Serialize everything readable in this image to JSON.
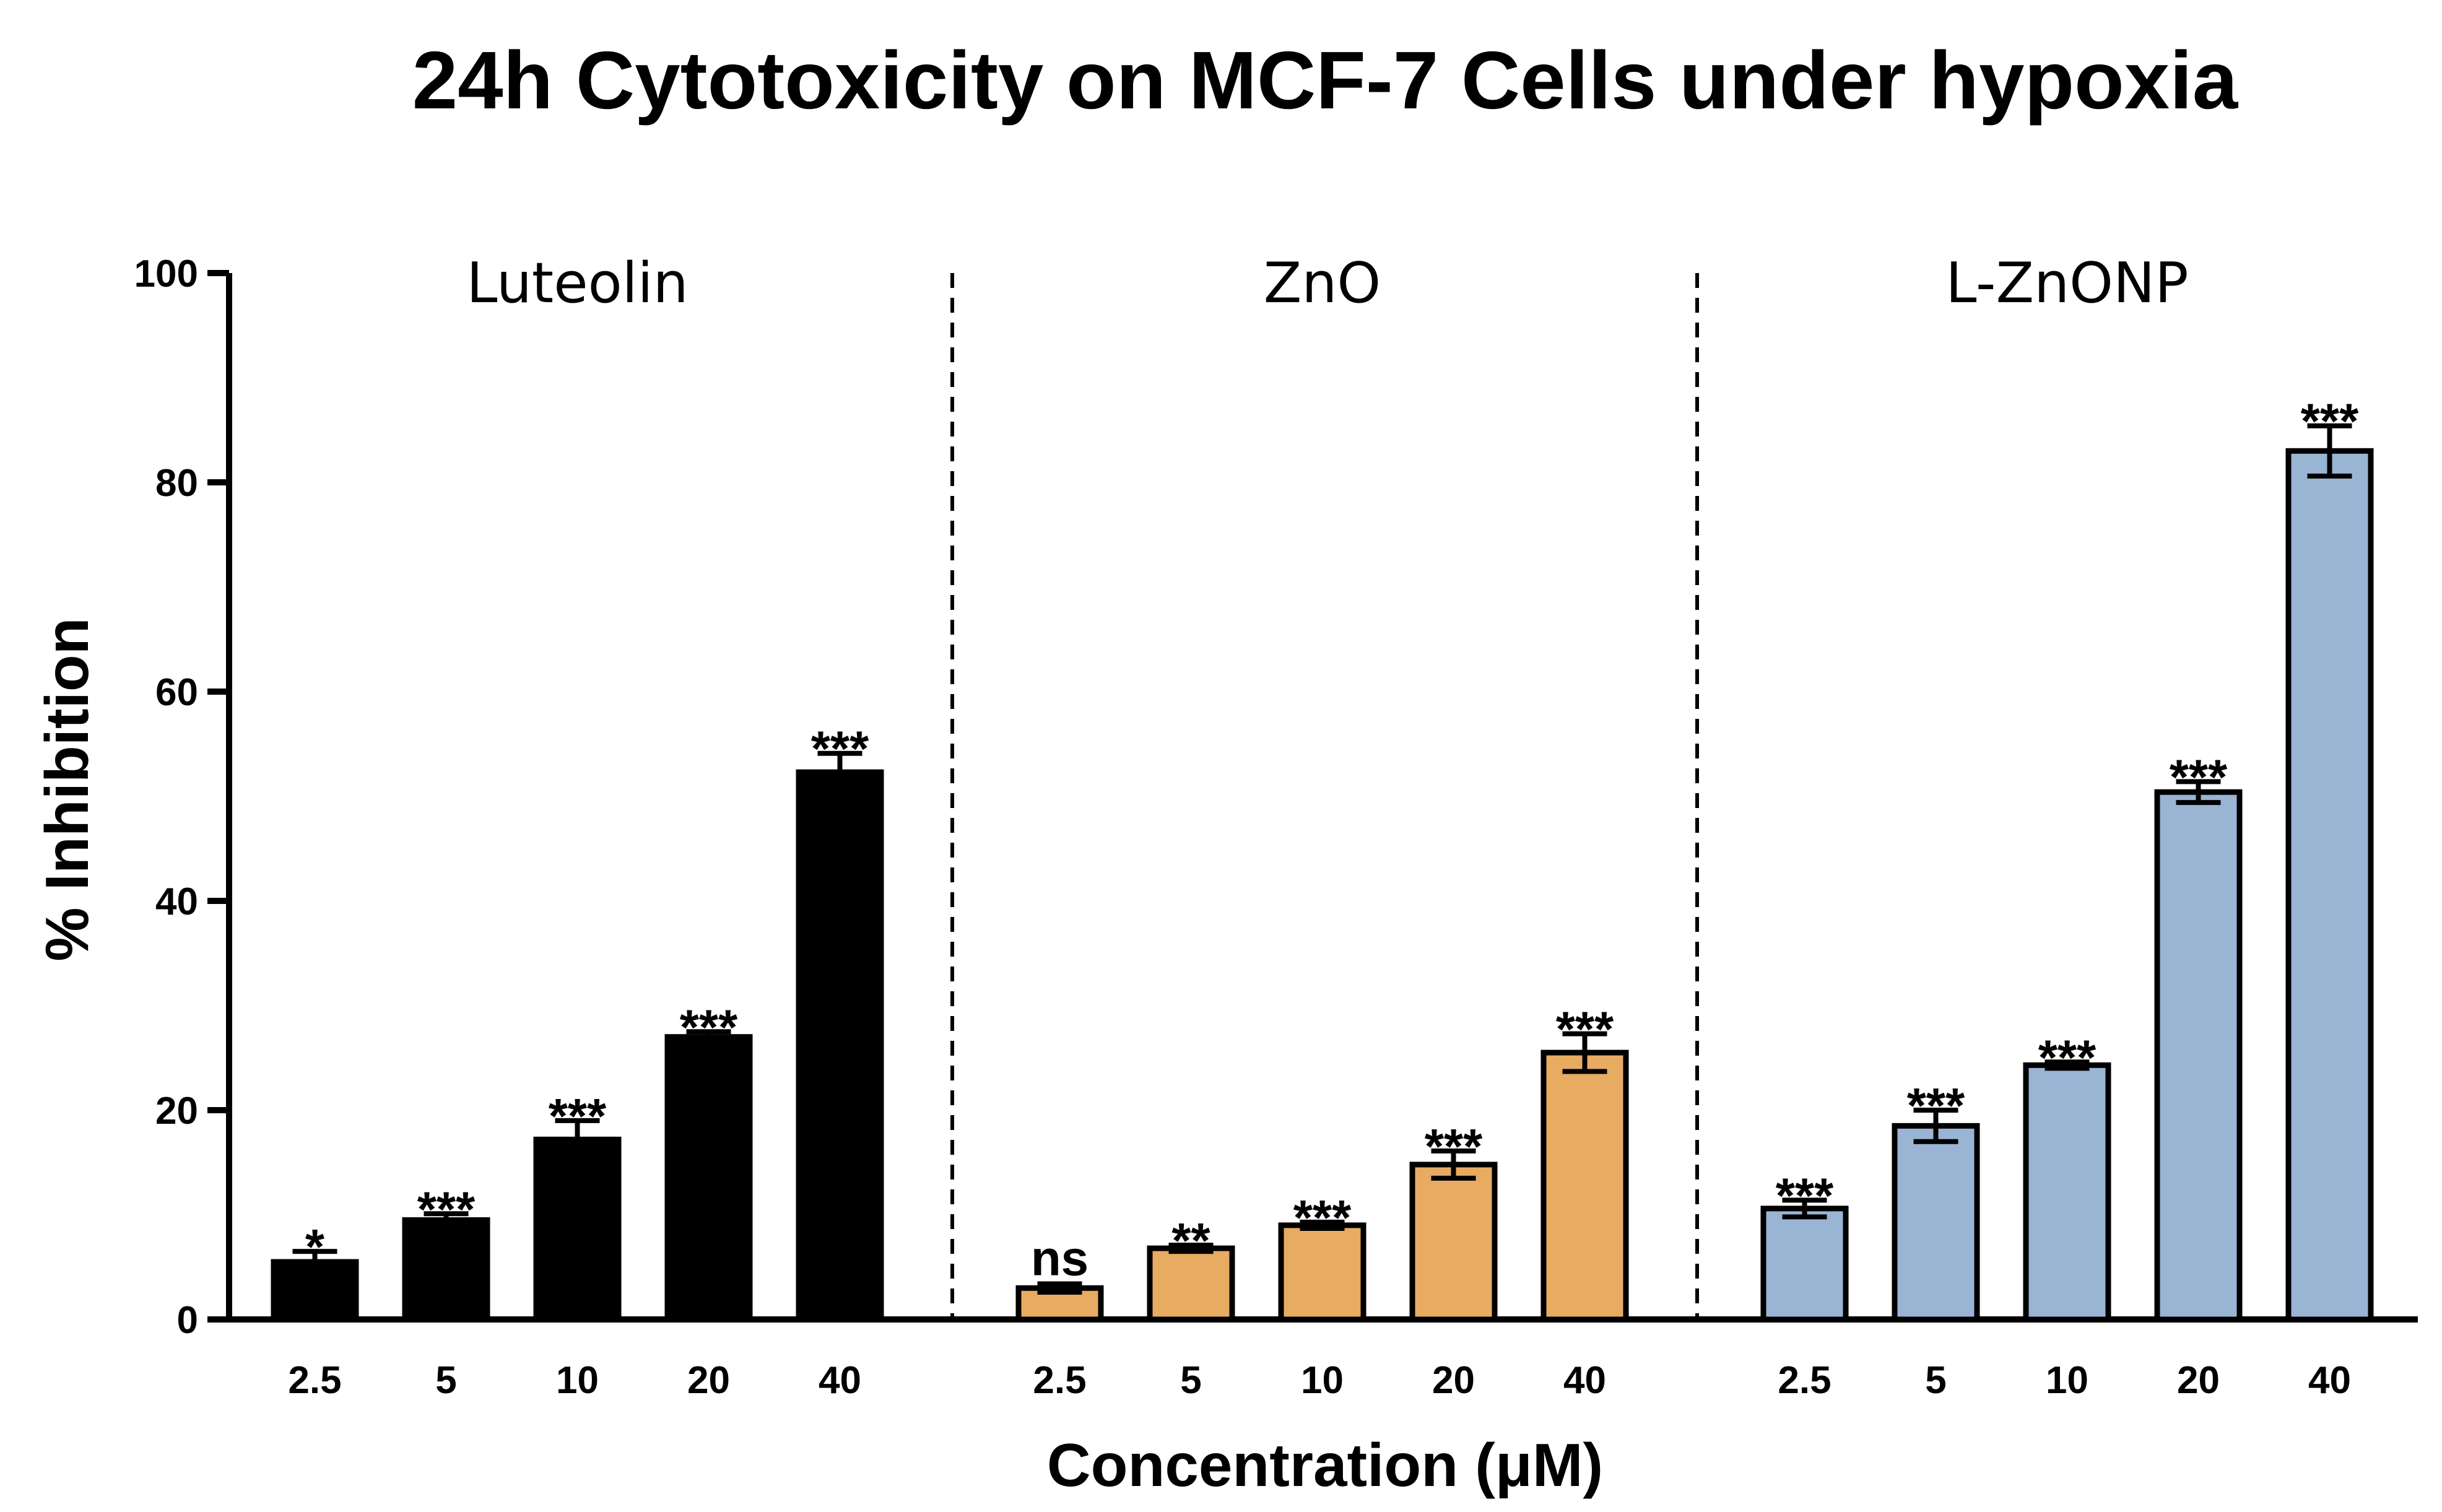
{
  "chart_data": {
    "type": "bar",
    "title": "24h Cytotoxicity on MCF-7 Cells under hypoxia",
    "xlabel": "Concentration (μM)",
    "ylabel": "% Inhibition",
    "ylim": [
      0,
      100
    ],
    "yticks": [
      "0",
      "20",
      "40",
      "60",
      "80",
      "100"
    ],
    "grid": false,
    "groups": [
      {
        "name": "Luteolin",
        "color": "#000000",
        "categories": [
          "2.5",
          "5",
          "10",
          "20",
          "40"
        ],
        "values": [
          5.5,
          9.5,
          17.2,
          27.0,
          52.3
        ],
        "errors": [
          1.0,
          0.6,
          1.8,
          0.5,
          1.8
        ],
        "significance": [
          "*",
          "***",
          "***",
          "***",
          "***"
        ]
      },
      {
        "name": "ZnO",
        "color": "#E8AB62",
        "categories": [
          "2.5",
          "5",
          "10",
          "20",
          "40"
        ],
        "values": [
          3.0,
          6.8,
          9.0,
          14.8,
          25.5
        ],
        "errors": [
          0.4,
          0.3,
          0.3,
          1.3,
          1.8
        ],
        "significance": [
          "ns",
          "**",
          "***",
          "***",
          "***"
        ]
      },
      {
        "name": "L-ZnONP",
        "color": "#9AB4D4",
        "categories": [
          "2.5",
          "5",
          "10",
          "20",
          "40"
        ],
        "values": [
          10.6,
          18.5,
          24.3,
          50.4,
          83.0
        ],
        "errors": [
          0.8,
          1.5,
          0.3,
          1.0,
          2.4
        ],
        "significance": [
          "***",
          "***",
          "***",
          "***",
          "***"
        ]
      }
    ]
  }
}
